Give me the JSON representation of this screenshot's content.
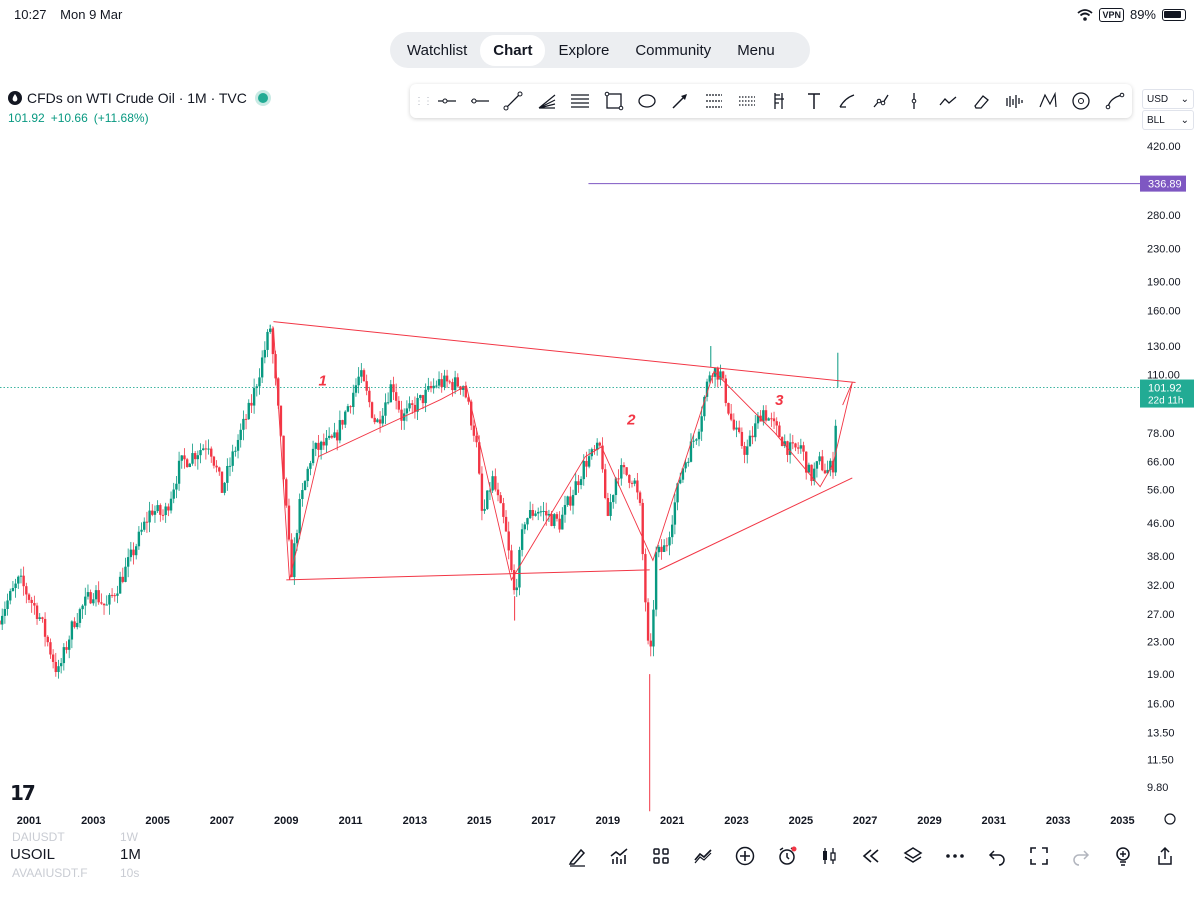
{
  "status_bar": {
    "time": "10:27",
    "date": "Mon 9 Mar",
    "vpn": "VPN",
    "battery": "89%"
  },
  "nav": {
    "items": [
      "Watchlist",
      "Chart",
      "Explore",
      "Community",
      "Menu"
    ],
    "active": "Chart"
  },
  "header": {
    "title": "CFDs on WTI Crude Oil · 1M · TVC",
    "last_price": "101.92",
    "change": "+10.66",
    "change_pct": "(+11.68%)"
  },
  "selectors": {
    "currency": "USD",
    "unit": "BLL"
  },
  "drawing_tools": [
    "horizontal-ray",
    "horizontal-line",
    "trend-line",
    "fib-fan",
    "parallel-channel",
    "rectangle",
    "ellipse",
    "arrow",
    "pitchfork",
    "gann-box",
    "long-position",
    "vertical-line",
    "text",
    "brush",
    "path",
    "info-line",
    "cross-line",
    "xabcd-pattern",
    "eraser",
    "volume-profile",
    "zigzag",
    "circle",
    "curve"
  ],
  "colors": {
    "up": "#089981",
    "down": "#f23645",
    "drawing": "#f23645",
    "accent": "#7e57c2",
    "last_price_line": "#22ab94"
  },
  "chart_data": {
    "type": "candlestick",
    "symbol": "USOIL",
    "interval": "1M",
    "y_scale": "log",
    "y_ticks": [
      "420.00",
      "280.00",
      "230.00",
      "190.00",
      "160.00",
      "130.00",
      "110.00",
      "78.00",
      "66.00",
      "56.00",
      "46.00",
      "38.00",
      "32.00",
      "27.00",
      "23.00",
      "19.00",
      "16.00",
      "13.50",
      "11.50",
      "9.80"
    ],
    "x_ticks": [
      "2001",
      "2003",
      "2005",
      "2007",
      "2009",
      "2011",
      "2013",
      "2015",
      "2017",
      "2019",
      "2021",
      "2023",
      "2025",
      "2027",
      "2029",
      "2031",
      "2033",
      "2035"
    ],
    "last_price": "101.92",
    "countdown": "22d 11h",
    "alert_level": "336.89",
    "annotations": [
      "1",
      "2",
      "3"
    ],
    "price_path": [
      [
        2000.0,
        26
      ],
      [
        2000.7,
        33
      ],
      [
        2001.3,
        27
      ],
      [
        2001.9,
        19
      ],
      [
        2002.4,
        26
      ],
      [
        2003.0,
        31
      ],
      [
        2003.4,
        28
      ],
      [
        2004.0,
        35
      ],
      [
        2004.8,
        50
      ],
      [
        2005.2,
        48
      ],
      [
        2005.7,
        65
      ],
      [
        2006.6,
        74
      ],
      [
        2007.0,
        56
      ],
      [
        2007.5,
        75
      ],
      [
        2007.9,
        92
      ],
      [
        2008.5,
        145
      ],
      [
        2008.8,
        80
      ],
      [
        2009.15,
        34
      ],
      [
        2009.4,
        50
      ],
      [
        2009.8,
        70
      ],
      [
        2010.5,
        75
      ],
      [
        2011.3,
        110
      ],
      [
        2011.8,
        82
      ],
      [
        2012.3,
        105
      ],
      [
        2012.6,
        85
      ],
      [
        2013.2,
        95
      ],
      [
        2013.7,
        105
      ],
      [
        2014.5,
        104
      ],
      [
        2014.9,
        75
      ],
      [
        2015.1,
        47
      ],
      [
        2015.4,
        60
      ],
      [
        2015.8,
        45
      ],
      [
        2016.1,
        30
      ],
      [
        2016.4,
        47
      ],
      [
        2016.8,
        50
      ],
      [
        2017.5,
        46
      ],
      [
        2018.3,
        66
      ],
      [
        2018.8,
        72
      ],
      [
        2018.95,
        46
      ],
      [
        2019.3,
        63
      ],
      [
        2019.8,
        60
      ],
      [
        2020.0,
        50
      ],
      [
        2020.3,
        19
      ],
      [
        2020.5,
        38
      ],
      [
        2020.8,
        40
      ],
      [
        2021.3,
        63
      ],
      [
        2021.8,
        80
      ],
      [
        2022.2,
        115
      ],
      [
        2022.5,
        110
      ],
      [
        2022.9,
        80
      ],
      [
        2023.3,
        70
      ],
      [
        2023.8,
        90
      ],
      [
        2024.2,
        80
      ],
      [
        2024.7,
        70
      ],
      [
        2025.0,
        72
      ],
      [
        2025.3,
        60
      ],
      [
        2025.6,
        66
      ],
      [
        2025.8,
        62
      ],
      [
        2026.0,
        65
      ],
      [
        2026.15,
        102
      ]
    ],
    "spikes": [
      [
        2008.5,
        147
      ],
      [
        2020.3,
        8.5
      ],
      [
        2016.1,
        26
      ],
      [
        2022.2,
        130
      ],
      [
        2026.15,
        125
      ]
    ],
    "trendlines": [
      [
        [
          2008.6,
          150
        ],
        [
          2026.7,
          105
        ]
      ],
      [
        [
          2009.0,
          33
        ],
        [
          2020.3,
          35
        ]
      ],
      [
        [
          2020.6,
          35
        ],
        [
          2026.6,
          60
        ]
      ]
    ],
    "drawn_path": [
      [
        2008.6,
        145
      ],
      [
        2009.1,
        33
      ],
      [
        2010.0,
        68
      ],
      [
        2013.8,
        95
      ],
      [
        2014.6,
        103
      ],
      [
        2016.0,
        33
      ],
      [
        2018.3,
        68
      ],
      [
        2018.8,
        72
      ],
      [
        2020.4,
        37
      ],
      [
        2022.3,
        112
      ],
      [
        2024.2,
        78
      ],
      [
        2025.6,
        57
      ],
      [
        2026.0,
        65
      ],
      [
        2026.6,
        105
      ],
      [
        2026.3,
        92
      ]
    ]
  },
  "bottom": {
    "symbol": "USOIL",
    "interval": "1M",
    "ghost_1": "DAIUSDT",
    "ghost_1_int": "1W",
    "ghost_2": "AVAAIUSDT.F",
    "ghost_2_int": "10s",
    "logo": "17"
  }
}
